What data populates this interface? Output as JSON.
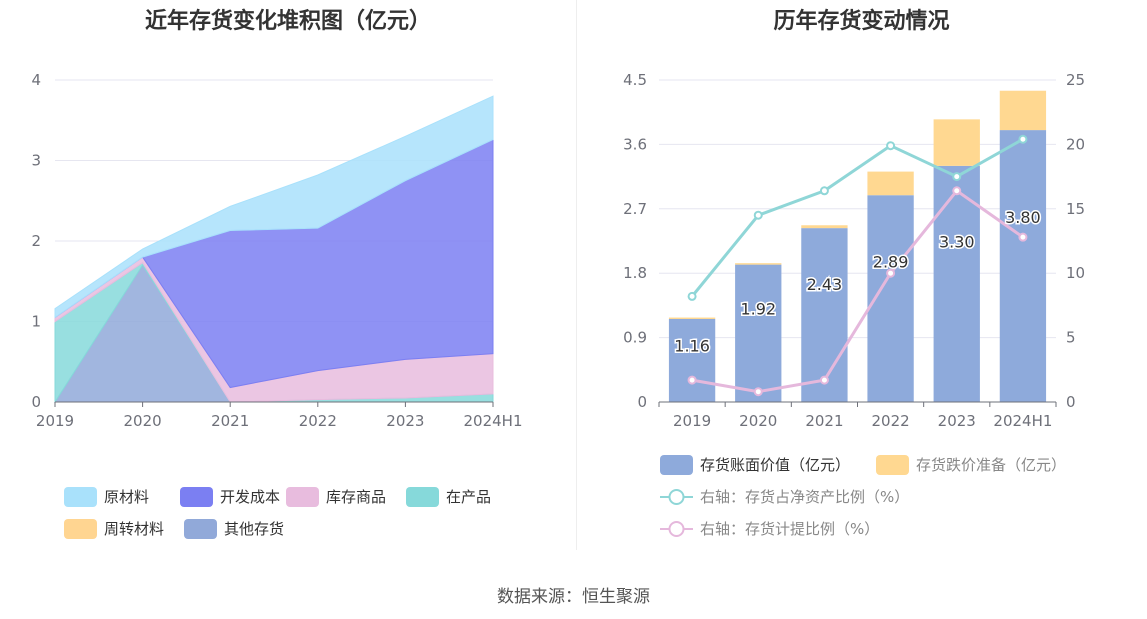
{
  "source": "数据来源：恒生聚源",
  "chart_data": [
    {
      "type": "area",
      "title": "近年存货变化堆积图（亿元）",
      "x": [
        "2019",
        "2020",
        "2021",
        "2022",
        "2023",
        "2024H1"
      ],
      "ylim": [
        0,
        4
      ],
      "yticks": [
        "0",
        "1",
        "2",
        "3",
        "4"
      ],
      "stacked": true,
      "grid": true,
      "legend_position": "bottom",
      "series": [
        {
          "name": "其他存货",
          "color": "#91a9d9",
          "values": [
            0.0,
            1.7,
            0.0,
            0.0,
            0.0,
            0.0
          ]
        },
        {
          "name": "周转材料",
          "color": "#ffd591",
          "values": [
            0.0,
            0.0,
            0.0,
            0.0,
            0.0,
            0.0
          ]
        },
        {
          "name": "在产品",
          "color": "#86d9da",
          "values": [
            1.0,
            0.03,
            0.0,
            0.03,
            0.05,
            0.1
          ]
        },
        {
          "name": "库存商品",
          "color": "#e8bcde",
          "values": [
            0.05,
            0.07,
            0.18,
            0.36,
            0.48,
            0.5
          ]
        },
        {
          "name": "开发成本",
          "color": "#7b7ff2",
          "values": [
            0.0,
            0.0,
            1.95,
            1.77,
            2.22,
            2.66
          ]
        },
        {
          "name": "原材料",
          "color": "#a9e1fb",
          "values": [
            0.11,
            0.1,
            0.3,
            0.66,
            0.55,
            0.54
          ]
        }
      ],
      "legend": [
        "原材料",
        "开发成本",
        "库存商品",
        "在产品",
        "周转材料",
        "其他存货"
      ]
    },
    {
      "type": "bar",
      "title": "历年存货变动情况",
      "categories": [
        "2019",
        "2020",
        "2021",
        "2022",
        "2023",
        "2024H1"
      ],
      "ylim": [
        0,
        4.5
      ],
      "yticks": [
        "0",
        "0.9",
        "1.8",
        "2.7",
        "3.6",
        "4.5"
      ],
      "y2lim": [
        0,
        25
      ],
      "y2ticks": [
        "0",
        "5",
        "10",
        "15",
        "20",
        "25"
      ],
      "stacked": true,
      "grid": true,
      "legend_position": "bottom",
      "series": [
        {
          "name": "存货账面价值（亿元）",
          "type": "bar",
          "color": "#8eaadb",
          "values": [
            1.16,
            1.92,
            2.43,
            2.89,
            3.3,
            3.8
          ],
          "labels": [
            "1.16",
            "1.92",
            "2.43",
            "2.89",
            "3.30",
            "3.80"
          ]
        },
        {
          "name": "存货跌价准备（亿元）",
          "type": "bar",
          "color": "#ffd891",
          "values": [
            0.02,
            0.02,
            0.04,
            0.33,
            0.65,
            0.55
          ]
        },
        {
          "name": "右轴：存货占净资产比例（%）",
          "type": "line",
          "axis": "right",
          "color": "#8fd6d7",
          "values": [
            8.2,
            14.5,
            16.4,
            19.9,
            17.5,
            20.4
          ]
        },
        {
          "name": "右轴：存货计提比例（%）",
          "type": "line",
          "axis": "right",
          "color": "#e5b8dc",
          "values": [
            1.7,
            0.8,
            1.7,
            10.0,
            16.4,
            12.8
          ]
        }
      ]
    }
  ]
}
